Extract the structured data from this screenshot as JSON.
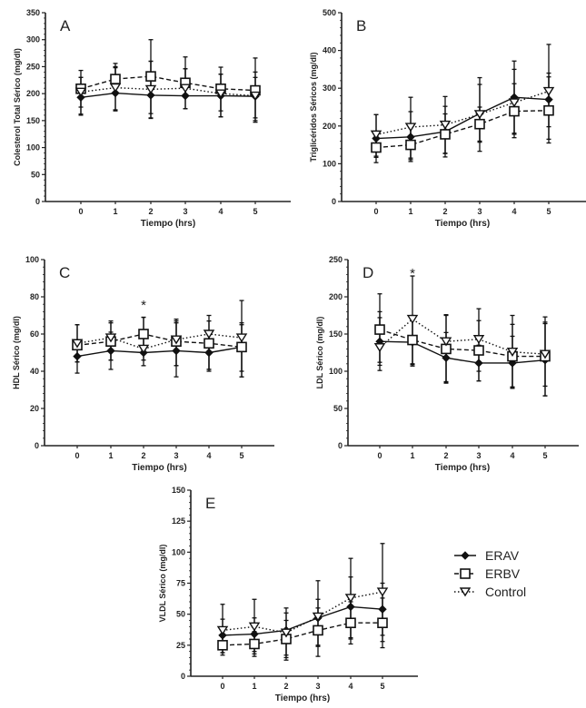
{
  "legend": {
    "entries": [
      {
        "name": "ERAV",
        "marker": "filled-diamond",
        "line": "solid"
      },
      {
        "name": "ERBV",
        "marker": "open-square",
        "line": "dashed"
      },
      {
        "name": "Control",
        "marker": "open-triangle-down",
        "line": "dotted"
      }
    ]
  },
  "chart_data": [
    {
      "panel": "A",
      "type": "line",
      "xlabel": "Tiempo  (hrs)",
      "ylabel": "Colesterol Total Sérico (mg/dl)",
      "x": [
        0,
        1,
        2,
        3,
        4,
        5
      ],
      "xticks": [
        "0",
        "1",
        "2",
        "3",
        "4",
        "5"
      ],
      "ylim": [
        0,
        350
      ],
      "yticks": [
        0,
        50,
        100,
        150,
        200,
        250,
        300,
        350
      ],
      "annotations": [],
      "series": [
        {
          "name": "ERAV",
          "values": [
            193,
            201,
            197,
            196,
            196,
            195
          ],
          "err_low": [
            160,
            168,
            155,
            172,
            157,
            147
          ],
          "err_high": [
            230,
            248,
            260,
            246,
            236,
            240
          ]
        },
        {
          "name": "ERBV",
          "values": [
            209,
            227,
            232,
            220,
            209,
            206
          ],
          "err_low": [
            175,
            203,
            163,
            197,
            168,
            150
          ],
          "err_high": [
            243,
            256,
            300,
            268,
            249,
            266
          ]
        },
        {
          "name": "Control",
          "values": [
            203,
            211,
            208,
            210,
            200,
            196
          ],
          "err_low": [
            162,
            170,
            154,
            172,
            157,
            155
          ],
          "err_high": [
            230,
            250,
            260,
            246,
            236,
            230
          ]
        }
      ]
    },
    {
      "panel": "B",
      "type": "line",
      "xlabel": "Tiempo (hrs)",
      "ylabel": "Triglicéridos Séricos (mg/dl)",
      "x": [
        0,
        1,
        2,
        3,
        4,
        5
      ],
      "xticks": [
        "0",
        "1",
        "2",
        "3",
        "4",
        "5"
      ],
      "ylim": [
        0,
        500
      ],
      "yticks": [
        0,
        100,
        200,
        300,
        400,
        500
      ],
      "annotations": [],
      "series": [
        {
          "name": "ERAV",
          "values": [
            167,
            171,
            185,
            233,
            276,
            270
          ],
          "err_low": [
            117,
            111,
            127,
            157,
            181,
            198
          ],
          "err_high": [
            230,
            238,
            252,
            310,
            372,
            340
          ]
        },
        {
          "name": "ERBV",
          "values": [
            143,
            150,
            178,
            205,
            239,
            241
          ],
          "err_low": [
            103,
            106,
            118,
            133,
            169,
            155
          ],
          "err_high": [
            183,
            195,
            232,
            250,
            312,
            330
          ]
        },
        {
          "name": "Control",
          "values": [
            177,
            197,
            203,
            231,
            262,
            292
          ],
          "err_low": [
            120,
            115,
            128,
            160,
            178,
            165
          ],
          "err_high": [
            230,
            276,
            278,
            328,
            350,
            416
          ]
        }
      ]
    },
    {
      "panel": "C",
      "type": "line",
      "xlabel": "Tiempo (hrs)",
      "ylabel": "HDL Sérico (mg/dl)",
      "x": [
        0,
        1,
        2,
        3,
        4,
        5
      ],
      "xticks": [
        "0",
        "1",
        "2",
        "3",
        "4",
        "5"
      ],
      "ylim": [
        0,
        100
      ],
      "yticks": [
        0,
        20,
        40,
        60,
        80,
        100
      ],
      "annotations": [
        {
          "x": 2,
          "y": 76,
          "text": "*"
        }
      ],
      "series": [
        {
          "name": "ERAV",
          "values": [
            48,
            51,
            50,
            51,
            50,
            53
          ],
          "err_low": [
            39,
            41,
            43,
            37,
            40,
            37
          ],
          "err_high": [
            57,
            61,
            58,
            66,
            60,
            66
          ]
        },
        {
          "name": "ERBV",
          "values": [
            54,
            56,
            60,
            56,
            55,
            53
          ],
          "err_low": [
            45,
            46,
            50,
            43,
            41,
            40
          ],
          "err_high": [
            65,
            66,
            69,
            67,
            67,
            78
          ]
        },
        {
          "name": "Control",
          "values": [
            55,
            58,
            52,
            57,
            60,
            58
          ],
          "err_low": [
            45,
            46,
            46,
            43,
            41,
            37
          ],
          "err_high": [
            65,
            67,
            69,
            68,
            70,
            65
          ]
        }
      ]
    },
    {
      "panel": "D",
      "type": "line",
      "xlabel": "Tiempo (hrs)",
      "ylabel": "LDL Sérico (mg/dl)",
      "x": [
        0,
        1,
        2,
        3,
        4,
        5
      ],
      "xticks": [
        "0",
        "1",
        "2",
        "3",
        "4",
        "5"
      ],
      "ylim": [
        0,
        250
      ],
      "yticks": [
        0,
        50,
        100,
        150,
        200,
        250
      ],
      "annotations": [
        {
          "x": 1,
          "y": 233,
          "text": "*"
        }
      ],
      "series": [
        {
          "name": "ERAV",
          "values": [
            140,
            139,
            118,
            111,
            111,
            115
          ],
          "err_low": [
            108,
            107,
            84,
            87,
            77,
            67
          ],
          "err_high": [
            172,
            170,
            152,
            135,
            147,
            164
          ]
        },
        {
          "name": "ERBV",
          "values": [
            156,
            142,
            130,
            128,
            120,
            120
          ],
          "err_low": [
            112,
            109,
            86,
            100,
            78,
            80
          ],
          "err_high": [
            204,
            175,
            176,
            168,
            163,
            166
          ]
        },
        {
          "name": "Control",
          "values": [
            132,
            170,
            140,
            143,
            126,
            123
          ],
          "err_low": [
            101,
            110,
            85,
            87,
            79,
            67
          ],
          "err_high": [
            180,
            228,
            175,
            184,
            175,
            173
          ]
        }
      ]
    },
    {
      "panel": "E",
      "type": "line",
      "xlabel": "Tiempo (hrs)",
      "ylabel": "VLDL Sérico (mg/dl)",
      "x": [
        0,
        1,
        2,
        3,
        4,
        5
      ],
      "xticks": [
        "0",
        "1",
        "2",
        "3",
        "4",
        "5"
      ],
      "ylim": [
        0,
        150
      ],
      "yticks": [
        0,
        25,
        50,
        75,
        100,
        125,
        150
      ],
      "annotations": [],
      "series": [
        {
          "name": "ERAV",
          "values": [
            33,
            34,
            37,
            47,
            56,
            54
          ],
          "err_low": [
            19,
            20,
            17,
            25,
            31,
            28
          ],
          "err_high": [
            46,
            47,
            51,
            62,
            80,
            75
          ]
        },
        {
          "name": "ERBV",
          "values": [
            25,
            26,
            30,
            37,
            43,
            43
          ],
          "err_low": [
            17,
            16,
            13,
            16,
            26,
            23
          ],
          "err_high": [
            33,
            36,
            45,
            55,
            60,
            63
          ]
        },
        {
          "name": "Control",
          "values": [
            37,
            40,
            35,
            48,
            63,
            68
          ],
          "err_low": [
            19,
            18,
            15,
            24,
            30,
            33
          ],
          "err_high": [
            58,
            62,
            55,
            77,
            95,
            107
          ]
        }
      ]
    }
  ]
}
